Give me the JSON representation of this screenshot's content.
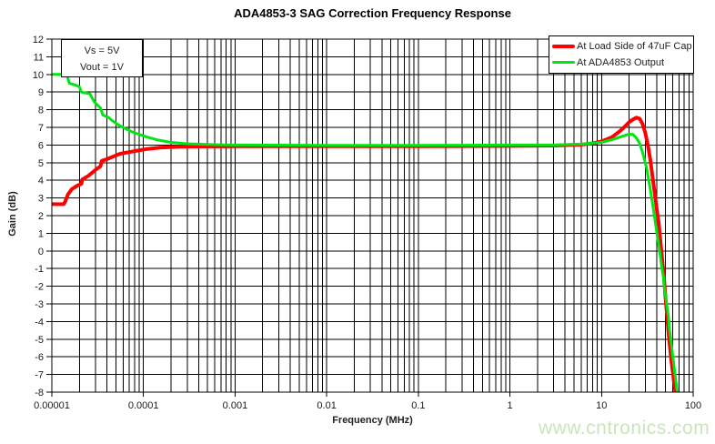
{
  "chart": {
    "title": "ADA4853-3 SAG Correction Frequency Response",
    "xlabel": "Frequency (MHz)",
    "ylabel": "Gain (dB)",
    "annotation": {
      "line1": "Vs = 5V",
      "line2": "Vout = 1V"
    },
    "watermark": "www.cntronics.com",
    "watermark_color": "#c9e6bb",
    "grid_color": "#000000",
    "background_color": "#ffffff"
  },
  "chart_data": {
    "type": "line",
    "x_scale": "log",
    "xlim": [
      1e-05,
      100
    ],
    "ylim": [
      -8,
      12
    ],
    "y_tick_step": 1,
    "x_tick_labels": [
      "0.00001",
      "0.0001",
      "0.001",
      "0.01",
      "0.1",
      "1",
      "10",
      "100"
    ],
    "grid": "major-and-minor",
    "legend_position": "top-right",
    "series": [
      {
        "name": "At Load Side of 47uF Cap",
        "color": "#ff0000",
        "width": 4,
        "points": [
          [
            1e-05,
            2.65
          ],
          [
            1.35e-05,
            2.65
          ],
          [
            1.4e-05,
            2.8
          ],
          [
            1.5e-05,
            3.2
          ],
          [
            1.65e-05,
            3.5
          ],
          [
            1.9e-05,
            3.7
          ],
          [
            2.1e-05,
            3.8
          ],
          [
            2.15e-05,
            4.05
          ],
          [
            2.5e-05,
            4.25
          ],
          [
            3e-05,
            4.6
          ],
          [
            3.4e-05,
            4.8
          ],
          [
            3.5e-05,
            5.1
          ],
          [
            4e-05,
            5.2
          ],
          [
            4.7e-05,
            5.35
          ],
          [
            5.5e-05,
            5.5
          ],
          [
            7e-05,
            5.6
          ],
          [
            8.5e-05,
            5.68
          ],
          [
            0.00011,
            5.78
          ],
          [
            0.00015,
            5.85
          ],
          [
            0.00025,
            5.9
          ],
          [
            0.0005,
            5.92
          ],
          [
            0.001,
            5.93
          ],
          [
            0.01,
            5.93
          ],
          [
            0.1,
            5.93
          ],
          [
            1,
            5.95
          ],
          [
            3,
            5.97
          ],
          [
            6,
            6.02
          ],
          [
            8,
            6.1
          ],
          [
            10,
            6.2
          ],
          [
            13,
            6.45
          ],
          [
            16,
            6.8
          ],
          [
            18,
            7.05
          ],
          [
            20,
            7.3
          ],
          [
            22,
            7.45
          ],
          [
            24,
            7.55
          ],
          [
            26,
            7.5
          ],
          [
            28,
            7.2
          ],
          [
            30,
            6.7
          ],
          [
            32,
            6.0
          ],
          [
            34,
            5.2
          ],
          [
            36,
            4.2
          ],
          [
            38,
            3.3
          ],
          [
            40,
            2.4
          ],
          [
            42,
            1.6
          ],
          [
            44,
            0.5
          ],
          [
            46,
            -0.5
          ],
          [
            48,
            -1.5
          ],
          [
            50,
            -2.7
          ],
          [
            52,
            -3.7
          ],
          [
            54,
            -4.7
          ],
          [
            56,
            -5.5
          ],
          [
            58,
            -6.3
          ],
          [
            60,
            -6.9
          ],
          [
            62,
            -7.5
          ],
          [
            64,
            -8
          ]
        ]
      },
      {
        "name": "At ADA4853 Output",
        "color": "#00e513",
        "width": 3,
        "points": [
          [
            1e-05,
            10
          ],
          [
            1.45e-05,
            10
          ],
          [
            1.55e-05,
            9.5
          ],
          [
            1.8e-05,
            9.4
          ],
          [
            2e-05,
            9.3
          ],
          [
            2.1e-05,
            9.0
          ],
          [
            2.6e-05,
            8.9
          ],
          [
            2.9e-05,
            8.45
          ],
          [
            3.1e-05,
            8.3
          ],
          [
            3.4e-05,
            8.1
          ],
          [
            3.6e-05,
            7.7
          ],
          [
            4.2e-05,
            7.55
          ],
          [
            4.5e-05,
            7.4
          ],
          [
            5.5e-05,
            7.1
          ],
          [
            6.5e-05,
            6.9
          ],
          [
            7.5e-05,
            6.75
          ],
          [
            9e-05,
            6.6
          ],
          [
            0.00011,
            6.45
          ],
          [
            0.00014,
            6.3
          ],
          [
            0.0002,
            6.15
          ],
          [
            0.0003,
            6.07
          ],
          [
            0.0006,
            6.02
          ],
          [
            0.001,
            6.0
          ],
          [
            0.01,
            5.98
          ],
          [
            0.1,
            5.98
          ],
          [
            1,
            6.0
          ],
          [
            3,
            6.0
          ],
          [
            6,
            6.05
          ],
          [
            10,
            6.15
          ],
          [
            13,
            6.3
          ],
          [
            17,
            6.5
          ],
          [
            20,
            6.62
          ],
          [
            22,
            6.6
          ],
          [
            24,
            6.4
          ],
          [
            26,
            6.1
          ],
          [
            28,
            5.6
          ],
          [
            31,
            4.7
          ],
          [
            34,
            3.5
          ],
          [
            37,
            2.3
          ],
          [
            40,
            1.1
          ],
          [
            43,
            0
          ],
          [
            46,
            -1.1
          ],
          [
            47.5,
            -1.5
          ],
          [
            48,
            -1.9
          ],
          [
            52,
            -3.2
          ],
          [
            54,
            -3.8
          ],
          [
            54.5,
            -4.3
          ],
          [
            57,
            -5.0
          ],
          [
            60,
            -6.0
          ],
          [
            63,
            -6.9
          ],
          [
            67,
            -8
          ]
        ]
      }
    ]
  }
}
